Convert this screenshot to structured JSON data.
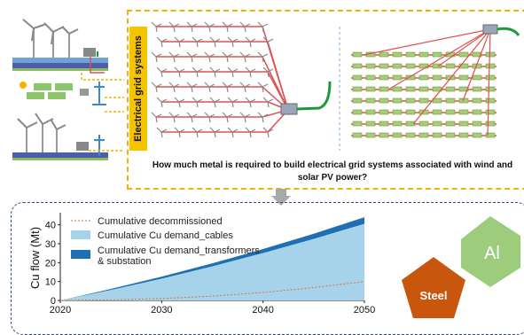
{
  "top_panel": {
    "vertical_label": "Electrical grid systems",
    "question_line1": "How much metal is required to build electrical grid systems associated with wind and",
    "question_line2": "solar PV power?"
  },
  "metals": {
    "al_label": "Al",
    "steel_label": "Steel",
    "al_color": "#9ccc7c",
    "steel_color": "#c8560c"
  },
  "colors": {
    "dashed_yellow": "#f0b400",
    "cable_red": "#e05050",
    "cable_green": "#1a9a3a",
    "cables_fill": "#a7d3ea",
    "transformers_fill": "#1f6fb4",
    "decommissioned_line": "#c87a3a"
  },
  "chart_data": {
    "type": "area",
    "xlabel": "",
    "ylabel": "Cu flow (Mt)",
    "xlim": [
      2020,
      2050
    ],
    "ylim": [
      0,
      45
    ],
    "xticks": [
      2020,
      2030,
      2040,
      2050
    ],
    "yticks": [
      0,
      10,
      20,
      30,
      40
    ],
    "x": [
      2020,
      2025,
      2030,
      2035,
      2040,
      2045,
      2050
    ],
    "series": [
      {
        "name": "Cumulative decommissioned",
        "style": "dotted-line",
        "values": [
          0,
          0.3,
          1.0,
          2.3,
          4.2,
          6.8,
          10.0
        ]
      },
      {
        "name": "Cumulative Cu demand_cables",
        "style": "area",
        "values": [
          0,
          5.5,
          11.5,
          18.0,
          25.0,
          32.5,
          40.5
        ]
      },
      {
        "name": "Cumulative Cu demand_transformers\n& substation",
        "style": "stacked-area",
        "values": [
          0,
          0.6,
          1.1,
          1.6,
          2.2,
          2.8,
          3.5
        ]
      }
    ],
    "legend_position": "top-left"
  }
}
